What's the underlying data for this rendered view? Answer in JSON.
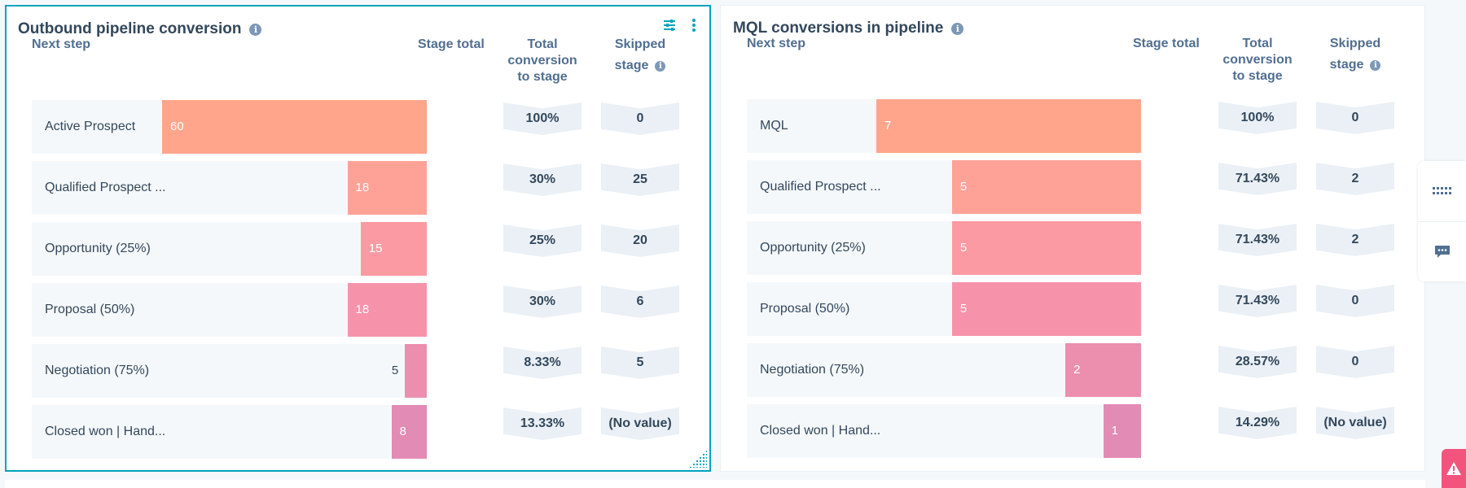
{
  "widgets": [
    {
      "title": "Outbound pipeline conversion",
      "headers": {
        "next_step": "Next step",
        "stage_total": "Stage total",
        "total_conversion_lines": [
          "Total",
          "conversion",
          "to stage"
        ],
        "skipped_lines": [
          "Skipped",
          "stage"
        ]
      },
      "icons": {
        "info": "info-icon",
        "filter": "filter-sliders-icon",
        "menu": "more-vertical-icon"
      }
    },
    {
      "title": "MQL conversions in pipeline",
      "headers": {
        "next_step": "Next step",
        "stage_total": "Stage total",
        "total_conversion_lines": [
          "Total",
          "conversion",
          "to stage"
        ],
        "skipped_lines": [
          "Skipped",
          "stage"
        ]
      },
      "icons": {
        "info": "info-icon"
      }
    }
  ],
  "side_rail": {
    "icons": [
      "keyboard-icon",
      "chat-icon"
    ]
  },
  "alert": {
    "icon": "warning-icon"
  },
  "chart_data": [
    {
      "type": "bar",
      "title": "Outbound pipeline conversion",
      "categories": [
        "Active Prospect",
        "Qualified Prospect ...",
        "Opportunity (25%)",
        "Proposal (50%)",
        "Negotiation (75%)",
        "Closed won | Hand..."
      ],
      "values": [
        60,
        18,
        15,
        18,
        5,
        8
      ],
      "value_labels": [
        "60",
        "18",
        "15",
        "18",
        "5",
        "8"
      ],
      "total_conversion": [
        "100%",
        "30%",
        "25%",
        "30%",
        "8.33%",
        "13.33%"
      ],
      "skipped_stage": [
        "0",
        "25",
        "20",
        "6",
        "5",
        "(No value)"
      ],
      "xlim": [
        0,
        60
      ],
      "colors": [
        "#ffa58c",
        "#fea297",
        "#fc9aa3",
        "#f693ab",
        "#ec8eae",
        "#e28bb4"
      ]
    },
    {
      "type": "bar",
      "title": "MQL conversions in pipeline",
      "categories": [
        "MQL",
        "Qualified Prospect ...",
        "Opportunity (25%)",
        "Proposal (50%)",
        "Negotiation (75%)",
        "Closed won | Hand..."
      ],
      "values": [
        7,
        5,
        5,
        5,
        2,
        1
      ],
      "value_labels": [
        "7",
        "5",
        "5",
        "5",
        "2",
        "1"
      ],
      "total_conversion": [
        "100%",
        "71.43%",
        "71.43%",
        "71.43%",
        "28.57%",
        "14.29%"
      ],
      "skipped_stage": [
        "0",
        "2",
        "2",
        "0",
        "0",
        "(No value)"
      ],
      "xlim": [
        0,
        7
      ],
      "colors": [
        "#ffa58c",
        "#fea297",
        "#fc9aa3",
        "#f693ab",
        "#ec8eae",
        "#e28bb4"
      ]
    }
  ]
}
